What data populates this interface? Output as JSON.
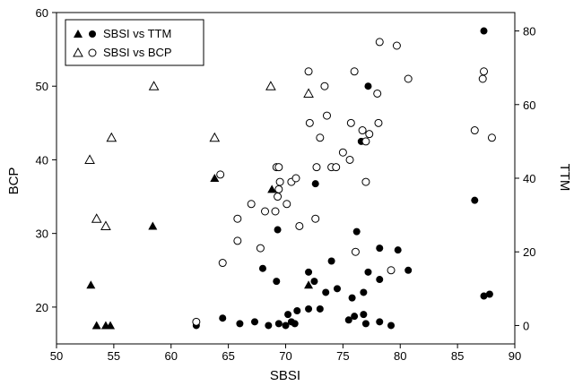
{
  "chart_data": {
    "type": "scatter",
    "xlabel": "SBSI",
    "ylabel_left": "BCP",
    "ylabel_right": "TTM",
    "xlim": [
      50,
      90
    ],
    "ylim_left": [
      15,
      60
    ],
    "ylim_right": [
      -5,
      85
    ],
    "xticks": [
      50,
      55,
      60,
      65,
      70,
      75,
      80,
      85,
      90
    ],
    "yticks_left": [
      20,
      30,
      40,
      50,
      60
    ],
    "yticks_right": [
      0,
      20,
      40,
      60,
      80
    ],
    "legend_position": "top-left",
    "grid": false,
    "series": [
      {
        "name": "SBSI vs TTM",
        "axis": "right",
        "points": [
          [
            62.2,
            0
          ],
          [
            64.5,
            2
          ],
          [
            66,
            0.5
          ],
          [
            67.3,
            1
          ],
          [
            68.5,
            0
          ],
          [
            69.4,
            0.5
          ],
          [
            70,
            0
          ],
          [
            70.5,
            1
          ],
          [
            70.8,
            0.5
          ],
          [
            70.2,
            3
          ],
          [
            71,
            4
          ],
          [
            72,
            4.5
          ],
          [
            73,
            4.5
          ],
          [
            73.5,
            9
          ],
          [
            74.5,
            10
          ],
          [
            75.5,
            1.5
          ],
          [
            76,
            2.5
          ],
          [
            76.8,
            3
          ],
          [
            77,
            0.5
          ],
          [
            78.2,
            1
          ],
          [
            79.2,
            0
          ],
          [
            68,
            15.5
          ],
          [
            69.2,
            12
          ],
          [
            72,
            14.5
          ],
          [
            72.5,
            12
          ],
          [
            74,
            17.5
          ],
          [
            75.8,
            7.5
          ],
          [
            76.8,
            9
          ],
          [
            77.2,
            14.5
          ],
          [
            78.2,
            12.5
          ],
          [
            80.7,
            15
          ],
          [
            78.2,
            21
          ],
          [
            79.8,
            20.5
          ],
          [
            69.3,
            26
          ],
          [
            76.2,
            25.5
          ],
          [
            72.6,
            38.5
          ],
          [
            76.6,
            50
          ],
          [
            77.2,
            65
          ],
          [
            86.5,
            34
          ],
          [
            87.3,
            8
          ],
          [
            87.8,
            8.5
          ],
          [
            87.3,
            80
          ]
        ]
      },
      {
        "name": "SBSI vs BCP",
        "axis": "left",
        "points": [
          [
            62.2,
            18
          ],
          [
            64.5,
            26
          ],
          [
            64.3,
            38
          ],
          [
            65.8,
            29
          ],
          [
            65.8,
            32
          ],
          [
            67,
            34
          ],
          [
            67.8,
            28
          ],
          [
            68.2,
            33
          ],
          [
            69.1,
            33
          ],
          [
            69.3,
            35
          ],
          [
            69.2,
            39
          ],
          [
            69.4,
            39
          ],
          [
            69.4,
            36
          ],
          [
            69.5,
            37
          ],
          [
            70.1,
            34
          ],
          [
            70.5,
            37
          ],
          [
            70.9,
            37.5
          ],
          [
            71.2,
            31
          ],
          [
            72,
            52
          ],
          [
            72.1,
            45
          ],
          [
            72.6,
            32
          ],
          [
            72.7,
            39
          ],
          [
            73,
            43
          ],
          [
            73.4,
            50
          ],
          [
            73.6,
            46
          ],
          [
            74,
            39
          ],
          [
            74.4,
            39
          ],
          [
            75,
            41
          ],
          [
            75.6,
            40
          ],
          [
            75.7,
            45
          ],
          [
            76,
            52
          ],
          [
            76.1,
            27.5
          ],
          [
            76.7,
            44
          ],
          [
            77,
            37
          ],
          [
            77,
            42.5
          ],
          [
            77.3,
            43.5
          ],
          [
            78,
            49
          ],
          [
            78.1,
            45
          ],
          [
            79.2,
            25
          ],
          [
            78.2,
            56
          ],
          [
            79.7,
            55.5
          ],
          [
            80.7,
            51
          ],
          [
            86.5,
            44
          ],
          [
            87.2,
            51
          ],
          [
            87.3,
            52
          ],
          [
            88,
            43
          ]
        ]
      },
      {
        "name": "SBSI vs TTM (triangle)",
        "axis": "right",
        "points": [
          [
            53,
            11
          ],
          [
            53.5,
            0
          ],
          [
            54.3,
            0
          ],
          [
            54.7,
            0
          ],
          [
            58.4,
            27
          ],
          [
            63.8,
            40
          ],
          [
            68.8,
            37
          ],
          [
            72,
            11
          ]
        ]
      },
      {
        "name": "SBSI vs BCP (triangle)",
        "axis": "left",
        "points": [
          [
            52.9,
            40
          ],
          [
            53.5,
            32
          ],
          [
            54.3,
            31
          ],
          [
            54.8,
            43
          ],
          [
            58.5,
            50
          ],
          [
            63.8,
            43
          ],
          [
            68.7,
            50
          ],
          [
            72,
            49
          ]
        ]
      }
    ],
    "legend": [
      {
        "label": "SBSI vs TTM",
        "filled": true
      },
      {
        "label": "SBSI vs BCP",
        "filled": false
      }
    ]
  }
}
